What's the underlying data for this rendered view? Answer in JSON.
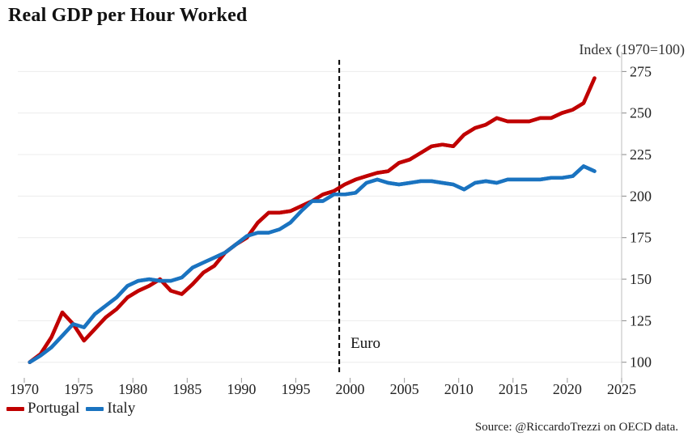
{
  "chart_data": {
    "type": "line",
    "title": "Real GDP per Hour Worked",
    "unit_label": "Index (1970=100)",
    "source": "Source: @RiccardoTrezzi on OECD data.",
    "xlim": [
      1970,
      2025
    ],
    "ylim": [
      95,
      282
    ],
    "x_ticks": [
      1970,
      1975,
      1980,
      1985,
      1990,
      1995,
      2000,
      2005,
      2010,
      2015,
      2020,
      2025
    ],
    "y_ticks": [
      100,
      125,
      150,
      175,
      200,
      225,
      250,
      275
    ],
    "y_axis_position": "right",
    "grid": "horizontal",
    "legend_position": "bottom-left",
    "annotation": {
      "text": "Euro",
      "x": 1999
    },
    "x": [
      1970,
      1971,
      1972,
      1973,
      1974,
      1975,
      1976,
      1977,
      1978,
      1979,
      1980,
      1981,
      1982,
      1983,
      1984,
      1985,
      1986,
      1987,
      1988,
      1989,
      1990,
      1991,
      1992,
      1993,
      1994,
      1995,
      1996,
      1997,
      1998,
      1999,
      2000,
      2001,
      2002,
      2003,
      2004,
      2005,
      2006,
      2007,
      2008,
      2009,
      2010,
      2011,
      2012,
      2013,
      2014,
      2015,
      2016,
      2017,
      2018,
      2019,
      2020,
      2021,
      2022
    ],
    "series": [
      {
        "name": "Portugal",
        "color": "#c00000",
        "values": [
          100,
          105,
          115,
          130,
          123,
          113,
          120,
          127,
          132,
          139,
          143,
          146,
          150,
          143,
          141,
          147,
          154,
          158,
          166,
          171,
          175,
          184,
          190,
          190,
          191,
          194,
          197,
          201,
          203,
          207,
          210,
          212,
          214,
          215,
          220,
          222,
          226,
          230,
          231,
          230,
          237,
          241,
          243,
          247,
          245,
          245,
          245,
          247,
          247,
          250,
          252,
          256,
          271
        ]
      },
      {
        "name": "Italy",
        "color": "#1a73c0",
        "values": [
          100,
          104,
          109,
          116,
          123,
          121,
          129,
          134,
          139,
          146,
          149,
          150,
          149,
          149,
          151,
          157,
          160,
          163,
          166,
          171,
          176,
          178,
          178,
          180,
          184,
          191,
          197,
          197,
          201,
          201,
          202,
          208,
          210,
          208,
          207,
          208,
          209,
          209,
          208,
          207,
          204,
          208,
          209,
          208,
          210,
          210,
          210,
          210,
          211,
          211,
          212,
          218,
          215
        ]
      }
    ]
  }
}
